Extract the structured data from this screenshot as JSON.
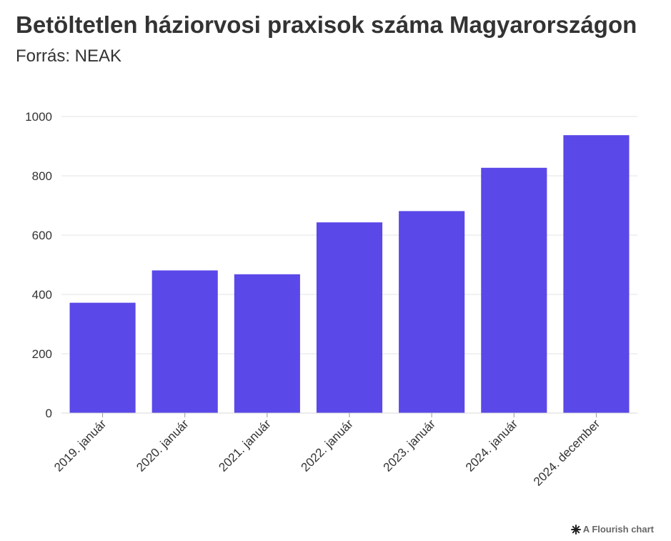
{
  "header": {
    "title": "Betöltetlen háziorvosi praxisok száma Magyarországon",
    "subtitle": "Forrás: NEAK"
  },
  "chart_data": {
    "type": "bar",
    "title": "Betöltetlen háziorvosi praxisok száma Magyarországon",
    "subtitle": "Forrás: NEAK",
    "categories": [
      "2019. január",
      "2020. január",
      "2021. január",
      "2022. január",
      "2023. január",
      "2024. január",
      "2024. december"
    ],
    "values": [
      372,
      481,
      468,
      643,
      681,
      827,
      937
    ],
    "xlabel": "",
    "ylabel": "",
    "ylim": [
      0,
      1000
    ],
    "yticks": [
      0,
      200,
      400,
      600,
      800,
      1000
    ],
    "grid": true,
    "legend": "none",
    "bar_color": "#5a48e8"
  },
  "footer": {
    "credit": "A Flourish chart",
    "icon": "flourish-logo-icon"
  }
}
